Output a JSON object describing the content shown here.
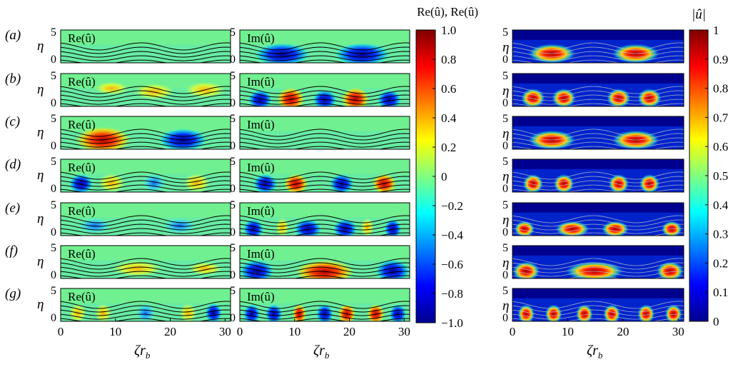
{
  "figure": {
    "rows": [
      {
        "label": "(a)"
      },
      {
        "label": "(b)"
      },
      {
        "label": "(c)"
      },
      {
        "label": "(d)"
      },
      {
        "label": "(e)"
      },
      {
        "label": "(f)"
      },
      {
        "label": "(g)"
      }
    ],
    "panel_labels": {
      "real": "Re(û)",
      "imag": "Im(û)"
    },
    "y_axis": {
      "label": "η",
      "ticks": [
        "5",
        "0"
      ]
    },
    "x_axis": {
      "label": "ζr",
      "label_sub": "b",
      "ticks": [
        "0",
        "10",
        "20",
        "30"
      ]
    },
    "colorbar_left": {
      "title": "Re(û), Re(û)",
      "ticks": [
        "1.0",
        "0.8",
        "0.6",
        "0.4",
        "0.2",
        "0",
        "−0.2",
        "−0.4",
        "−0.6",
        "−0.8",
        "−1.0"
      ],
      "range": [
        -1,
        1
      ]
    },
    "colorbar_right": {
      "title": "|û|",
      "ticks": [
        "1",
        "0.9",
        "0.8",
        "0.7",
        "0.6",
        "0.5",
        "0.4",
        "0.3",
        "0.2",
        "0.1",
        "0"
      ],
      "range": [
        0,
        1
      ]
    },
    "colormap": [
      "#00008f",
      "#0000ff",
      "#00ffff",
      "#ffff00",
      "#ff0000",
      "#800000"
    ]
  }
}
